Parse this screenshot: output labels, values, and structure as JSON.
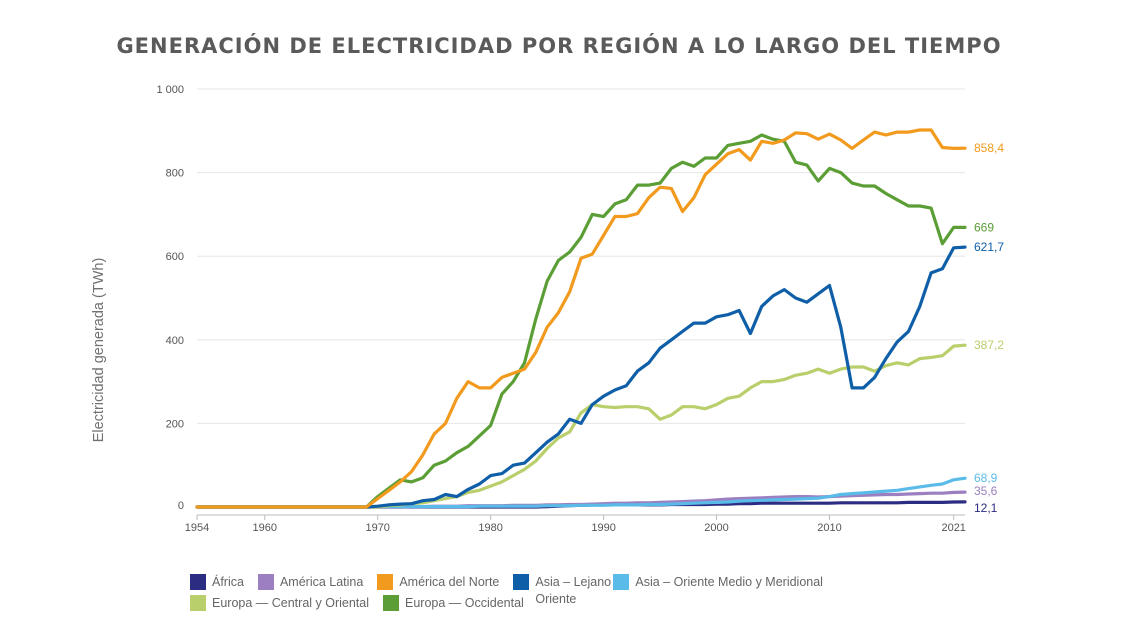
{
  "chart_data": {
    "type": "line",
    "title": "GENERACIÓN DE ELECTRICIDAD POR REGIÓN A LO LARGO DEL TIEMPO",
    "xlabel": "",
    "ylabel": "Electricidad generada (TWh)",
    "xlim": [
      1954,
      2022
    ],
    "ylim": [
      0,
      1000
    ],
    "x_ticks": [
      1954,
      1960,
      1970,
      1980,
      1990,
      2000,
      2010,
      2021
    ],
    "y_ticks": [
      0,
      200,
      400,
      600,
      800,
      1000
    ],
    "y_tick_labels": [
      "0",
      "200",
      "400",
      "600",
      "800",
      "1 000"
    ],
    "x": [
      1954,
      1955,
      1956,
      1957,
      1958,
      1959,
      1960,
      1961,
      1962,
      1963,
      1964,
      1965,
      1966,
      1967,
      1968,
      1969,
      1970,
      1971,
      1972,
      1973,
      1974,
      1975,
      1976,
      1977,
      1978,
      1979,
      1980,
      1981,
      1982,
      1983,
      1984,
      1985,
      1986,
      1987,
      1988,
      1989,
      1990,
      1991,
      1992,
      1993,
      1994,
      1995,
      1996,
      1997,
      1998,
      1999,
      2000,
      2001,
      2002,
      2003,
      2004,
      2005,
      2006,
      2007,
      2008,
      2009,
      2010,
      2011,
      2012,
      2013,
      2014,
      2015,
      2016,
      2017,
      2018,
      2019,
      2020,
      2021,
      2022
    ],
    "series": [
      {
        "name": "África",
        "color": "#2b2c82",
        "end_label": "12,1",
        "values": [
          0,
          0,
          0,
          0,
          0,
          0,
          0,
          0,
          0,
          0,
          0,
          0,
          0,
          0,
          0,
          0,
          0,
          0,
          0,
          0,
          0,
          0,
          0,
          0,
          0,
          0,
          0,
          0,
          0,
          0,
          0,
          1,
          2,
          3,
          4,
          5,
          5,
          5,
          5,
          5,
          5,
          5,
          6,
          6,
          6,
          6,
          7,
          7,
          8,
          8,
          9,
          9,
          9,
          9,
          9,
          9,
          9,
          10,
          10,
          10,
          10,
          10,
          10,
          11,
          11,
          11,
          11,
          12,
          12.1
        ]
      },
      {
        "name": "América Latina",
        "color": "#9b7fc0",
        "end_label": "35,6",
        "values": [
          0,
          0,
          0,
          0,
          0,
          0,
          0,
          0,
          0,
          0,
          0,
          0,
          0,
          0,
          0,
          0,
          0,
          0,
          0,
          1,
          1,
          2,
          2,
          2,
          3,
          3,
          3,
          3,
          4,
          4,
          4,
          5,
          5,
          6,
          6,
          7,
          8,
          9,
          9,
          10,
          10,
          11,
          12,
          13,
          14,
          15,
          17,
          19,
          20,
          21,
          22,
          23,
          24,
          25,
          25,
          24,
          25,
          26,
          27,
          28,
          29,
          30,
          30,
          31,
          32,
          33,
          33,
          35,
          35.6
        ]
      },
      {
        "name": "América del Norte",
        "color": "#f29a1d",
        "end_label": "858,4",
        "values": [
          0,
          0,
          0,
          0,
          0,
          0,
          0,
          0,
          0,
          0,
          0,
          0,
          0,
          0,
          0,
          0,
          20,
          40,
          60,
          85,
          125,
          175,
          200,
          260,
          300,
          285,
          285,
          310,
          320,
          330,
          370,
          430,
          465,
          515,
          595,
          605,
          650,
          695,
          695,
          702,
          740,
          765,
          762,
          707,
          740,
          795,
          820,
          845,
          855,
          830,
          875,
          870,
          878,
          895,
          893,
          880,
          892,
          878,
          858,
          878,
          897,
          890,
          897,
          897,
          902,
          902,
          860,
          858,
          858.4
        ]
      },
      {
        "name": "Asia – Lejano Oriente",
        "color": "#0f5ea8",
        "end_label": "621,7",
        "values": [
          0,
          0,
          0,
          0,
          0,
          0,
          0,
          0,
          0,
          0,
          0,
          0,
          0,
          0,
          0,
          0,
          2,
          5,
          7,
          8,
          15,
          18,
          30,
          25,
          42,
          55,
          75,
          80,
          100,
          105,
          130,
          155,
          175,
          210,
          200,
          245,
          265,
          280,
          290,
          325,
          345,
          380,
          400,
          420,
          440,
          440,
          455,
          460,
          470,
          415,
          480,
          505,
          520,
          500,
          490,
          510,
          530,
          430,
          285,
          285,
          310,
          355,
          395,
          420,
          480,
          560,
          570,
          620,
          621.7
        ]
      },
      {
        "name": "Asia – Oriente Medio y Meridional",
        "color": "#5bbbe8",
        "end_label": "68,9",
        "values": [
          0,
          0,
          0,
          0,
          0,
          0,
          0,
          0,
          0,
          0,
          0,
          0,
          0,
          0,
          0,
          0,
          1,
          1,
          1,
          1,
          1,
          1,
          1,
          1,
          1,
          2,
          2,
          2,
          2,
          2,
          2,
          3,
          3,
          3,
          4,
          4,
          4,
          5,
          5,
          5,
          6,
          6,
          7,
          8,
          9,
          10,
          11,
          12,
          14,
          15,
          16,
          17,
          18,
          19,
          20,
          21,
          25,
          30,
          32,
          34,
          36,
          38,
          40,
          44,
          48,
          52,
          55,
          65,
          68.9
        ]
      },
      {
        "name": "Europa — Central y Oriental",
        "color": "#b9cf6b",
        "end_label": "387,2",
        "values": [
          0,
          0,
          0,
          0,
          0,
          0,
          0,
          0,
          0,
          0,
          0,
          0,
          0,
          0,
          0,
          0,
          0,
          3,
          5,
          8,
          10,
          15,
          20,
          25,
          35,
          40,
          50,
          60,
          75,
          90,
          110,
          140,
          165,
          180,
          225,
          245,
          240,
          238,
          240,
          240,
          235,
          210,
          220,
          240,
          240,
          235,
          245,
          260,
          265,
          285,
          300,
          300,
          305,
          315,
          320,
          330,
          320,
          330,
          335,
          335,
          325,
          338,
          345,
          340,
          355,
          358,
          362,
          385,
          387.2
        ]
      },
      {
        "name": "Europa — Occidental",
        "color": "#5b9e35",
        "end_label": "669",
        "values": [
          0,
          0,
          0,
          0,
          0,
          0,
          0,
          0,
          0,
          0,
          0,
          0,
          0,
          0,
          0,
          0,
          25,
          45,
          65,
          60,
          70,
          100,
          110,
          130,
          145,
          170,
          195,
          270,
          300,
          345,
          450,
          540,
          590,
          610,
          645,
          700,
          695,
          725,
          735,
          770,
          770,
          775,
          810,
          825,
          815,
          835,
          835,
          865,
          870,
          875,
          890,
          880,
          875,
          825,
          818,
          780,
          810,
          800,
          775,
          768,
          768,
          750,
          735,
          720,
          720,
          715,
          630,
          669,
          669
        ]
      }
    ]
  },
  "legend": [
    {
      "label": "África",
      "color": "#2b2c82"
    },
    {
      "label": "América Latina",
      "color": "#9b7fc0"
    },
    {
      "label": "América del Norte",
      "color": "#f29a1d"
    },
    {
      "label": "Asia – Lejano Oriente",
      "color": "#0f5ea8"
    },
    {
      "label": "Asia – Oriente Medio y Meridional",
      "color": "#5bbbe8"
    },
    {
      "label": "Europa — Central y Oriental",
      "color": "#b9cf6b"
    },
    {
      "label": "Europa — Occidental",
      "color": "#5b9e35"
    }
  ]
}
